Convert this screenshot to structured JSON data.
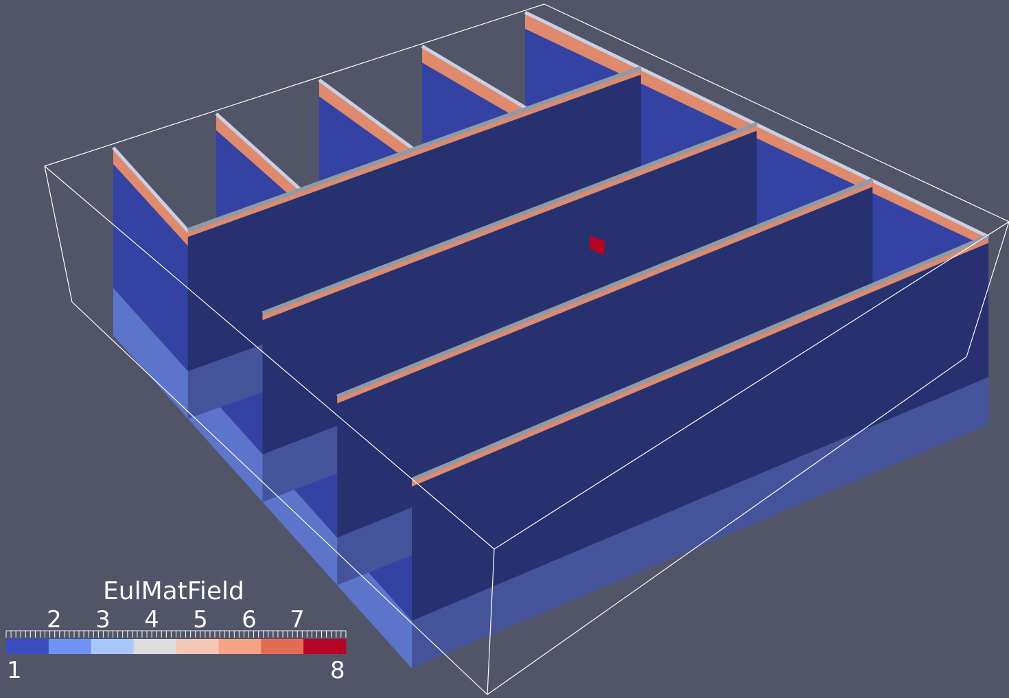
{
  "scene": {
    "background_color": "#525468",
    "outline_color": "#ffffff",
    "panel_colors": {
      "front_dark": "#27316f",
      "front_mid": "#3442a4",
      "lower_band": "#5c75cb",
      "lower_band_dark": "#45549a",
      "surface_orange": "#df8a6c",
      "surface_light": "#c8d0e6",
      "beam_gray": "#8f9aa8",
      "hot_red": "#b40426"
    }
  },
  "legend": {
    "title": "EulMatField",
    "min_label": "1",
    "max_label": "8",
    "tick_labels": [
      "2",
      "3",
      "4",
      "5",
      "6",
      "7"
    ],
    "color_bins": [
      "#3b4cc0",
      "#6f92f3",
      "#aac7fd",
      "#dddcdc",
      "#f2c8b4",
      "#f6a385",
      "#e36c55",
      "#b40426"
    ]
  }
}
